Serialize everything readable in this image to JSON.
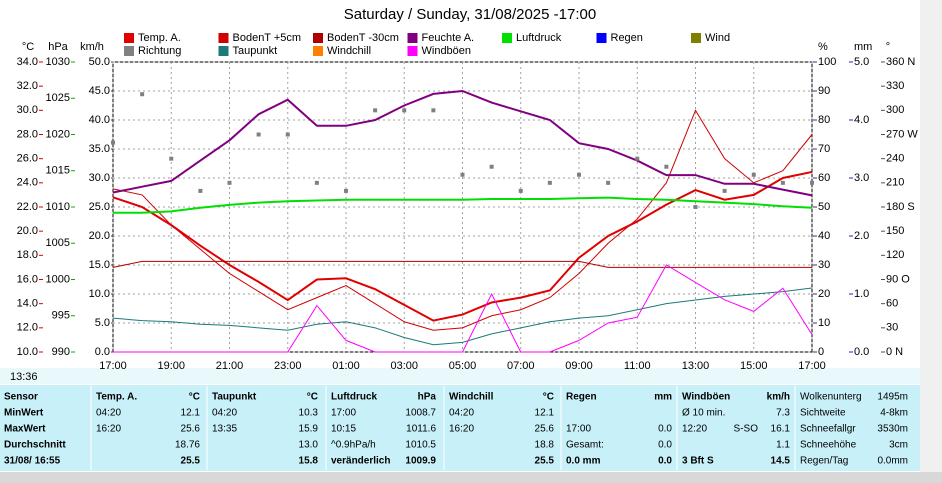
{
  "chart_data": {
    "type": "line",
    "title": "Saturday / Sunday, 31/08/2025  -17:00",
    "categories": [
      "17:00",
      null,
      "19:00",
      null,
      "21:00",
      null,
      "23:00",
      null,
      "01:00",
      null,
      "03:00",
      null,
      "05:00",
      null,
      "07:00",
      null,
      "09:00",
      null,
      "11:00",
      null,
      "13:00",
      null,
      "15:00",
      null,
      "17:00"
    ],
    "grid": true,
    "axes": {
      "temp": {
        "label": "°C",
        "color": "#e00000",
        "lim": [
          10,
          34
        ],
        "ticks": [
          {
            "value": 10,
            "label": "10.0"
          },
          {
            "value": 12,
            "label": "12.0"
          },
          {
            "value": 14,
            "label": "14.0"
          },
          {
            "value": 16,
            "label": "16.0"
          },
          {
            "value": 18,
            "label": "18.0"
          },
          {
            "value": 20,
            "label": "20.0"
          },
          {
            "value": 22,
            "label": "22.0"
          },
          {
            "value": 24,
            "label": "24.0"
          },
          {
            "value": 26,
            "label": "26.0"
          },
          {
            "value": 28,
            "label": "28.0"
          },
          {
            "value": 30,
            "label": "30.0"
          },
          {
            "value": 32,
            "label": "32.0"
          },
          {
            "value": 34,
            "label": "34.0"
          }
        ]
      },
      "hpa": {
        "label": "hPa",
        "color": "#00b000",
        "lim": [
          990,
          1030
        ],
        "ticks": [
          990,
          995,
          1000,
          1005,
          1010,
          1015,
          1020,
          1025,
          1030
        ]
      },
      "kmh": {
        "label": "km/h",
        "color": "#404040",
        "lim": [
          0,
          50
        ],
        "ticks": [
          {
            "value": 0,
            "label": "0.0"
          },
          {
            "value": 5,
            "label": "5.0"
          },
          {
            "value": 10,
            "label": "10.0"
          },
          {
            "value": 15,
            "label": "15.0"
          },
          {
            "value": 20,
            "label": "20.0"
          },
          {
            "value": 25,
            "label": "25.0"
          },
          {
            "value": 30,
            "label": "30.0"
          },
          {
            "value": 35,
            "label": "35.0"
          },
          {
            "value": 40,
            "label": "40.0"
          },
          {
            "value": 45,
            "label": "45.0"
          },
          {
            "value": 50,
            "label": "50.0"
          }
        ],
        "grid": true
      },
      "pct": {
        "label": "%",
        "color": "#502080",
        "lim": [
          0,
          100
        ],
        "ticks": [
          0,
          10,
          20,
          30,
          40,
          50,
          60,
          70,
          80,
          90,
          100
        ]
      },
      "mm": {
        "label": "mm",
        "color": "#2020c0",
        "lim": [
          0,
          5
        ],
        "ticks": [
          {
            "value": 0,
            "label": "0.0"
          },
          {
            "value": 1,
            "label": "1.0"
          },
          {
            "value": 2,
            "label": "2.0"
          },
          {
            "value": 3,
            "label": "3.0"
          },
          {
            "value": 4,
            "label": "4.0"
          },
          {
            "value": 5,
            "label": "5.0"
          }
        ]
      },
      "dir": {
        "label": "°",
        "color": "#505050",
        "lim": [
          0,
          360
        ],
        "ticks": [
          {
            "value": 0,
            "label": "0 N"
          },
          30,
          60,
          {
            "value": 90,
            "label": "90 O"
          },
          120,
          150,
          {
            "value": 180,
            "label": "180 S"
          },
          210,
          240,
          {
            "value": 270,
            "label": "270 W"
          },
          300,
          330,
          {
            "value": 360,
            "label": "360 N"
          }
        ]
      }
    },
    "series": [
      {
        "name": "Temp. A.",
        "color": "#e00000",
        "axis": "temp",
        "width": 2,
        "values": [
          22.8,
          22.0,
          20.5,
          18.8,
          17.2,
          15.8,
          14.3,
          16.0,
          16.1,
          15.2,
          13.9,
          12.6,
          13.1,
          14.1,
          14.5,
          15.1,
          17.8,
          19.6,
          20.8,
          22.2,
          23.4,
          22.6,
          23.0,
          24.4,
          24.9
        ]
      },
      {
        "name": "BodenT +5cm",
        "color": "#d00000",
        "axis": "temp",
        "width": 1,
        "values": [
          23.5,
          23.0,
          20.5,
          18.5,
          16.5,
          15.0,
          13.5,
          14.5,
          15.5,
          14.0,
          12.5,
          11.8,
          12.0,
          13.0,
          13.5,
          14.5,
          16.5,
          19.0,
          21.0,
          24.0,
          30.0,
          26.0,
          24.0,
          25.0,
          28.0
        ]
      },
      {
        "name": "BodenT -30cm",
        "color": "#b00000",
        "axis": "temp",
        "width": 1,
        "values": [
          17.0,
          17.5,
          17.5,
          17.5,
          17.5,
          17.5,
          17.5,
          17.5,
          17.5,
          17.5,
          17.5,
          17.5,
          17.5,
          17.5,
          17.5,
          17.5,
          17.5,
          17.0,
          17.0,
          17.0,
          17.0,
          17.0,
          17.0,
          17.0,
          17.0
        ]
      },
      {
        "name": "Feuchte A.",
        "color": "#800080",
        "axis": "pct",
        "width": 2,
        "values": [
          55,
          57,
          59,
          66,
          73,
          82,
          87,
          78,
          78,
          80,
          85,
          89,
          90,
          86,
          83,
          80,
          72,
          70,
          66,
          61,
          61,
          58,
          58,
          56,
          54
        ]
      },
      {
        "name": "Luftdruck",
        "color": "#00e000",
        "axis": "hpa",
        "width": 2,
        "values": [
          1009.2,
          1009.2,
          1009.4,
          1009.9,
          1010.3,
          1010.6,
          1010.8,
          1010.9,
          1011.0,
          1011.0,
          1011.0,
          1011.0,
          1011.0,
          1011.1,
          1011.1,
          1011.1,
          1011.2,
          1011.3,
          1011.1,
          1011.0,
          1010.8,
          1010.6,
          1010.4,
          1010.1,
          1009.9
        ]
      },
      {
        "name": "Regen",
        "color": "#0000ff",
        "axis": "mm"
      },
      {
        "name": "Wind",
        "color": "#808000",
        "axis": "kmh"
      },
      {
        "name": "Richtung",
        "color": "#808080",
        "axis": "dir",
        "style": "points",
        "values": [
          260,
          320,
          240,
          200,
          210,
          270,
          270,
          210,
          200,
          300,
          300,
          300,
          220,
          230,
          200,
          210,
          220,
          210,
          240,
          230,
          180,
          200,
          220,
          210,
          210
        ]
      },
      {
        "name": "Taupunkt",
        "color": "#1a7a7a",
        "axis": "temp",
        "width": 1,
        "values": [
          12.8,
          12.6,
          12.5,
          12.3,
          12.2,
          12.0,
          11.8,
          12.3,
          12.5,
          12.0,
          11.2,
          10.6,
          10.8,
          11.5,
          12.0,
          12.5,
          12.8,
          13.0,
          13.5,
          14.0,
          14.3,
          14.6,
          14.8,
          15.0,
          15.3
        ]
      },
      {
        "name": "Windchill",
        "color": "#ff8000",
        "axis": "temp"
      },
      {
        "name": "Windböen",
        "color": "#ff00ff",
        "axis": "kmh",
        "width": 1,
        "values": [
          0,
          0,
          0,
          0,
          0,
          0,
          0,
          8.0,
          2.0,
          0,
          0,
          0,
          0,
          10.0,
          0,
          0,
          2.0,
          5.0,
          6.0,
          15.0,
          12.0,
          9.0,
          7.0,
          11.0,
          3.0
        ]
      }
    ]
  },
  "time": "13:36",
  "table": {
    "panels": [
      {
        "header": [
          "Sensor"
        ],
        "rows": [
          [
            "MinWert"
          ],
          [
            "MaxWert"
          ],
          [
            "Durchschnitt"
          ],
          [
            "31/08/ 16:55"
          ]
        ]
      },
      {
        "header": [
          "Temp. A.",
          "°C"
        ],
        "rows": [
          [
            "04:20",
            "12.1"
          ],
          [
            "16:20",
            "25.6"
          ],
          [
            "18.76"
          ],
          [
            "25.5"
          ]
        ]
      },
      {
        "header": [
          "Taupunkt",
          "°C"
        ],
        "rows": [
          [
            "04:20",
            "10.3"
          ],
          [
            "13:35",
            "15.9"
          ],
          [
            "13.0"
          ],
          [
            "15.8"
          ]
        ]
      },
      {
        "header": [
          "Luftdruck",
          "hPa"
        ],
        "rows": [
          [
            "17:00",
            "1008.7"
          ],
          [
            "10:15",
            "1011.6"
          ],
          [
            "^0.9hPa/h",
            "1010.5"
          ],
          [
            "veränderlich",
            "1009.9"
          ]
        ]
      },
      {
        "header": [
          "Windchill",
          "°C"
        ],
        "rows": [
          [
            "04:20",
            "12.1"
          ],
          [
            "16:20",
            "25.6"
          ],
          [
            "18.8"
          ],
          [
            "25.5"
          ]
        ]
      },
      {
        "header": [
          "Regen",
          "mm"
        ],
        "rows": [
          [],
          [
            "17:00",
            "0.0"
          ],
          [
            "Gesamt:",
            "0.0"
          ],
          [
            "0.0 mm",
            "0.0"
          ]
        ]
      },
      {
        "header": [
          "Windböen",
          "km/h"
        ],
        "rows": [
          [
            "Ø 10 min.",
            "7.3"
          ],
          [
            "12:20",
            "S-SO",
            "16.1"
          ],
          [
            "1.1"
          ],
          [
            "3 Bft S",
            "14.5"
          ]
        ]
      },
      {
        "rows": [
          [
            "Wolkenunterg",
            "1495m"
          ],
          [
            "Sichtweite",
            "4-8km"
          ],
          [
            "Schneefallgr",
            "3530m"
          ],
          [
            "Schneehöhe",
            "3cm"
          ],
          [
            "Regen/Tag",
            "0.0mm"
          ]
        ]
      }
    ]
  }
}
